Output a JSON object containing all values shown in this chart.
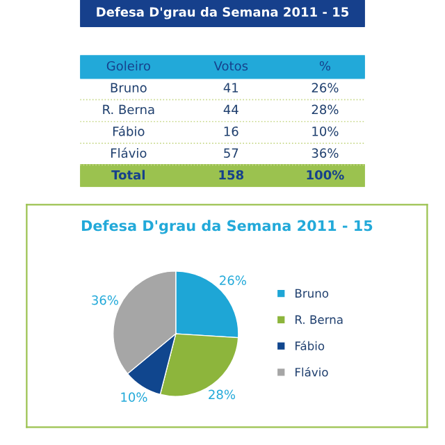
{
  "chart_data": [
    {
      "type": "other",
      "title": "Defesa D'grau da Semana 2011 - 15",
      "xlabel": "Goleiro",
      "categories": [
        "Bruno",
        "R. Berna",
        "Fábio",
        "Flávio"
      ],
      "series": [
        {
          "name": "Votos",
          "values": [
            41,
            44,
            16,
            57
          ]
        },
        {
          "name": "%",
          "values": [
            26,
            28,
            10,
            36
          ],
          "value_labels": [
            "26%",
            "28%",
            "10%",
            "36%"
          ]
        }
      ],
      "data_labels": true,
      "annotations": [
        "Total"
      ],
      "totals": [
        "158",
        "100%"
      ]
    },
    {
      "type": "pie",
      "title": "Defesa D'grau da Semana 2011 - 15",
      "categories": [
        "Bruno",
        "R. Berna",
        "Fábio",
        "Flávio"
      ],
      "values": [
        26,
        28,
        10,
        36
      ],
      "value_labels": [
        "26%",
        "28%",
        "10%",
        "36%"
      ],
      "colors": [
        "#1ea6d6",
        "#8db53c",
        "#10468e",
        "#a6a6a6"
      ],
      "legend": "right"
    }
  ]
}
